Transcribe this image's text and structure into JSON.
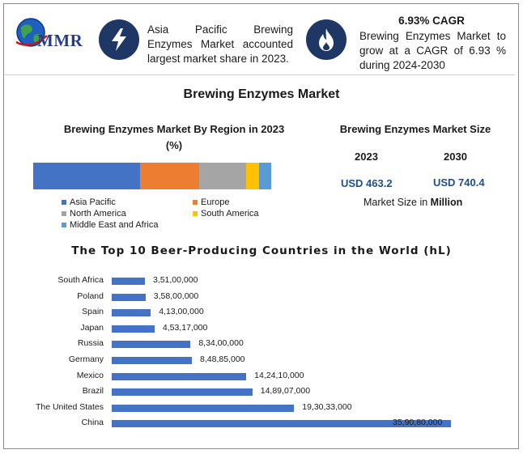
{
  "logo": {
    "text": "MMR",
    "icon": "globe-icon"
  },
  "headline_left": {
    "icon": "lightning-icon",
    "text": "Asia Pacific Brewing Enzymes Market accounted largest market share in 2023."
  },
  "headline_right": {
    "icon": "flame-icon",
    "title": "6.93% CAGR",
    "text": "Brewing Enzymes Market to grow at a CAGR of 6.93 % during 2024-2030"
  },
  "main_title": "Brewing Enzymes Market",
  "colors": {
    "bar_blue": "#4472c4",
    "icon_navy": "#1f3764",
    "usd_blue": "#1f4e8c"
  },
  "chart_data": [
    {
      "type": "bar",
      "orientation": "horizontal-stacked",
      "title": "Brewing Enzymes Market By Region in 2023",
      "subtitle": "(%)",
      "series": [
        {
          "name": "Asia Pacific",
          "value": 43,
          "color": "#4472c4"
        },
        {
          "name": "Europe",
          "value": 24,
          "color": "#ed7d31"
        },
        {
          "name": "North America",
          "value": 19,
          "color": "#a5a5a5"
        },
        {
          "name": "South America",
          "value": 5,
          "color": "#ffc000"
        },
        {
          "name": "Middle East and Africa",
          "value": 5,
          "color": "#5b9bd5"
        }
      ],
      "legend_placement": "bottom"
    },
    {
      "type": "table",
      "title": "Brewing Enzymes Market Size",
      "columns": [
        "2023",
        "2030"
      ],
      "values": [
        "USD 463.2",
        "USD 740.4"
      ],
      "footer_prefix": "Market Size in ",
      "footer_unit": "Million"
    },
    {
      "type": "bar",
      "orientation": "horizontal",
      "title": "The Top 10 Beer-Producing Countries in the World (hL)",
      "categories": [
        "South Africa",
        "Poland",
        "Spain",
        "Japan",
        "Russia",
        "Germany",
        "Mexico",
        "Brazil",
        "The United States",
        "China"
      ],
      "values": [
        35100000,
        35800000,
        41300000,
        45317000,
        83400000,
        84885000,
        142410000,
        148907000,
        193033000,
        359080000
      ],
      "labels": [
        "3,51,00,000",
        "3,58,00,000",
        "4,13,00,000",
        "4,53,17,000",
        "8,34,00,000",
        "8,48,85,000",
        "14,24,10,000",
        "14,89,07,000",
        "19,30,33,000",
        "35,90,80,000"
      ],
      "xlim": [
        0,
        359080000
      ]
    }
  ]
}
